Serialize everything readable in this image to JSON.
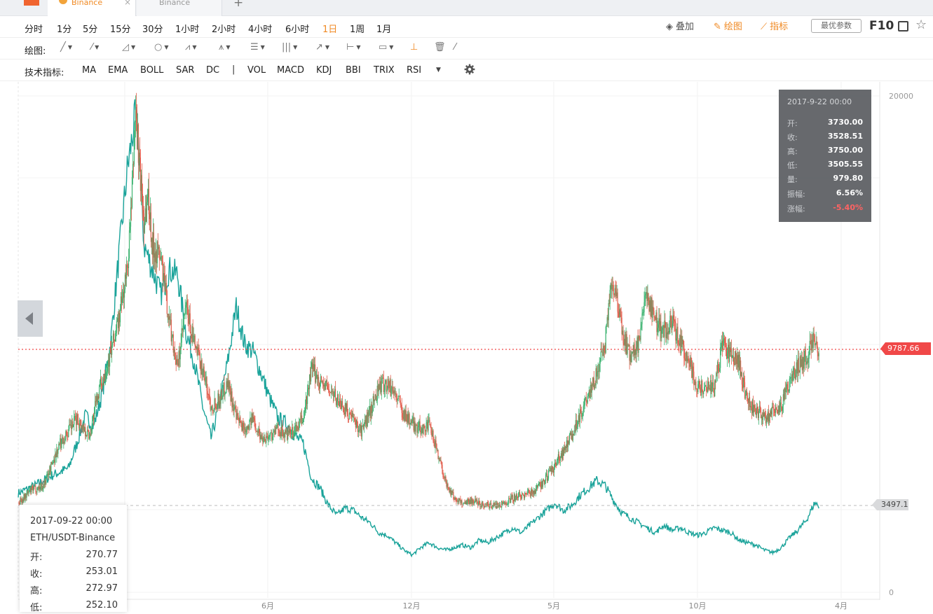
{
  "tabs": [
    {
      "label": "Binance",
      "active": true
    },
    {
      "label": "Binance",
      "active": false
    }
  ],
  "periods": [
    "分时",
    "1分",
    "5分",
    "15分",
    "30分",
    "1小时",
    "2小时",
    "4小时",
    "6小时",
    "1日",
    "1周",
    "1月"
  ],
  "active_period": "1日",
  "right_tools": {
    "overlay": "叠加",
    "draw": "绘图",
    "indicator": "指标",
    "best_params": "最优参数",
    "f10": "F10"
  },
  "draw_toolbar": {
    "label": "绘图:"
  },
  "indicator_toolbar": {
    "label": "技术指标:",
    "main": [
      "MA",
      "EMA",
      "BOLL",
      "SAR",
      "DC"
    ],
    "sub": [
      "VOL",
      "MACD",
      "KDJ",
      "BBI",
      "TRIX",
      "RSI"
    ]
  },
  "tooltip_primary": {
    "date": "2017-9-22 00:00",
    "rows": [
      {
        "k": "开:",
        "v": "3730.00"
      },
      {
        "k": "收:",
        "v": "3528.51"
      },
      {
        "k": "高:",
        "v": "3750.00"
      },
      {
        "k": "低:",
        "v": "3505.55"
      },
      {
        "k": "量:",
        "v": "979.80"
      },
      {
        "k": "振幅:",
        "v": "6.56%"
      },
      {
        "k": "涨幅:",
        "v": "-5.40%"
      }
    ]
  },
  "tooltip_compare": {
    "date": "2017-09-22 00:00",
    "symbol": "ETH/USDT-Binance",
    "rows": [
      {
        "k": "开:",
        "v": "270.77"
      },
      {
        "k": "收:",
        "v": "253.01"
      },
      {
        "k": "高:",
        "v": "272.97"
      },
      {
        "k": "低:",
        "v": "252.10"
      }
    ]
  },
  "colors": {
    "up": "#3cb371",
    "down": "#e25b4a",
    "compare": "#1aa39a",
    "accent": "#f08a24",
    "last_price": "#f04848"
  },
  "chart_data": {
    "type": "line",
    "x_tick_labels": [
      "6月",
      "12月",
      "5月",
      "10月",
      "4月"
    ],
    "y_ticks": [
      0,
      20000
    ],
    "ylim": [
      0,
      20000
    ],
    "last_price_label": "9787.66",
    "last_price": 9787.66,
    "compare_last_label": "3497.1",
    "compare_last": 3497.1,
    "series": [
      {
        "kind": "candles",
        "points": [
          [
            0,
            3600
          ],
          [
            3,
            4100
          ],
          [
            6,
            4300
          ],
          [
            10,
            6000
          ],
          [
            14,
            7000
          ],
          [
            17,
            6300
          ],
          [
            19,
            8000
          ],
          [
            22,
            9600
          ],
          [
            24,
            11000
          ],
          [
            26,
            13000
          ],
          [
            27,
            15500
          ],
          [
            28,
            19500
          ],
          [
            29,
            17000
          ],
          [
            30,
            15000
          ],
          [
            31,
            16000
          ],
          [
            32,
            14000
          ],
          [
            34,
            13500
          ],
          [
            36,
            11000
          ],
          [
            38,
            9000
          ],
          [
            40,
            11500
          ],
          [
            42,
            10000
          ],
          [
            44,
            9000
          ],
          [
            46,
            7500
          ],
          [
            48,
            7800
          ],
          [
            50,
            8500
          ],
          [
            52,
            7000
          ],
          [
            54,
            6600
          ],
          [
            56,
            7000
          ],
          [
            58,
            6200
          ],
          [
            60,
            6300
          ],
          [
            62,
            6600
          ],
          [
            64,
            6300
          ],
          [
            66,
            6500
          ],
          [
            68,
            7000
          ],
          [
            70,
            9000
          ],
          [
            72,
            8500
          ],
          [
            74,
            8200
          ],
          [
            76,
            7800
          ],
          [
            78,
            7400
          ],
          [
            80,
            6900
          ],
          [
            82,
            6500
          ],
          [
            84,
            7300
          ],
          [
            86,
            8300
          ],
          [
            88,
            8400
          ],
          [
            90,
            8000
          ],
          [
            92,
            7200
          ],
          [
            94,
            6800
          ],
          [
            96,
            6600
          ],
          [
            98,
            6700
          ],
          [
            100,
            5700
          ],
          [
            102,
            4400
          ],
          [
            104,
            3800
          ],
          [
            106,
            3600
          ],
          [
            108,
            3700
          ],
          [
            110,
            3600
          ],
          [
            112,
            3500
          ],
          [
            114,
            3500
          ],
          [
            116,
            3600
          ],
          [
            118,
            3800
          ],
          [
            120,
            3900
          ],
          [
            122,
            4000
          ],
          [
            124,
            4200
          ],
          [
            126,
            4600
          ],
          [
            128,
            5100
          ],
          [
            130,
            5700
          ],
          [
            132,
            6300
          ],
          [
            134,
            7200
          ],
          [
            136,
            7800
          ],
          [
            138,
            8800
          ],
          [
            140,
            10000
          ],
          [
            141,
            12000
          ],
          [
            142,
            12500
          ],
          [
            144,
            10500
          ],
          [
            146,
            9500
          ],
          [
            148,
            10000
          ],
          [
            150,
            12000
          ],
          [
            152,
            11000
          ],
          [
            154,
            10500
          ],
          [
            156,
            10800
          ],
          [
            158,
            10000
          ],
          [
            160,
            9400
          ],
          [
            162,
            8200
          ],
          [
            164,
            8300
          ],
          [
            166,
            8200
          ],
          [
            168,
            10000
          ],
          [
            170,
            9500
          ],
          [
            172,
            9200
          ],
          [
            174,
            7600
          ],
          [
            176,
            7400
          ],
          [
            178,
            7000
          ],
          [
            180,
            7300
          ],
          [
            182,
            7500
          ],
          [
            184,
            8500
          ],
          [
            186,
            9100
          ],
          [
            188,
            9500
          ],
          [
            190,
            10200
          ],
          [
            191,
            9700
          ]
        ]
      },
      {
        "name": "ETH/USDT-Binance",
        "kind": "line",
        "points": [
          [
            0,
            4000
          ],
          [
            4,
            4300
          ],
          [
            8,
            4700
          ],
          [
            12,
            5000
          ],
          [
            14,
            6000
          ],
          [
            16,
            7100
          ],
          [
            18,
            6700
          ],
          [
            20,
            8000
          ],
          [
            22,
            10000
          ],
          [
            24,
            13500
          ],
          [
            26,
            17000
          ],
          [
            28,
            19200
          ],
          [
            29,
            17500
          ],
          [
            30,
            14000
          ],
          [
            32,
            13000
          ],
          [
            34,
            12000
          ],
          [
            36,
            13000
          ],
          [
            38,
            12800
          ],
          [
            40,
            10500
          ],
          [
            42,
            9300
          ],
          [
            44,
            7500
          ],
          [
            46,
            6200
          ],
          [
            48,
            7600
          ],
          [
            50,
            9300
          ],
          [
            52,
            11500
          ],
          [
            54,
            10000
          ],
          [
            56,
            9700
          ],
          [
            58,
            8800
          ],
          [
            60,
            7800
          ],
          [
            62,
            7000
          ],
          [
            64,
            6800
          ],
          [
            66,
            6300
          ],
          [
            68,
            6000
          ],
          [
            70,
            4600
          ],
          [
            72,
            4200
          ],
          [
            74,
            3500
          ],
          [
            76,
            3100
          ],
          [
            78,
            3400
          ],
          [
            80,
            3300
          ],
          [
            82,
            3000
          ],
          [
            84,
            2800
          ],
          [
            86,
            2400
          ],
          [
            88,
            2300
          ],
          [
            90,
            2000
          ],
          [
            92,
            1700
          ],
          [
            94,
            1500
          ],
          [
            96,
            1800
          ],
          [
            98,
            2000
          ],
          [
            100,
            1800
          ],
          [
            102,
            1700
          ],
          [
            104,
            1800
          ],
          [
            106,
            1900
          ],
          [
            108,
            1800
          ],
          [
            110,
            2100
          ],
          [
            112,
            2000
          ],
          [
            114,
            2200
          ],
          [
            116,
            2400
          ],
          [
            118,
            2600
          ],
          [
            120,
            2400
          ],
          [
            122,
            2700
          ],
          [
            124,
            3000
          ],
          [
            126,
            3300
          ],
          [
            128,
            3600
          ],
          [
            130,
            3300
          ],
          [
            132,
            3500
          ],
          [
            134,
            3900
          ],
          [
            136,
            4200
          ],
          [
            138,
            4500
          ],
          [
            140,
            4300
          ],
          [
            142,
            3700
          ],
          [
            144,
            3200
          ],
          [
            146,
            3000
          ],
          [
            148,
            2800
          ],
          [
            150,
            2600
          ],
          [
            152,
            2400
          ],
          [
            154,
            2700
          ],
          [
            156,
            2500
          ],
          [
            158,
            2600
          ],
          [
            160,
            2400
          ],
          [
            162,
            2300
          ],
          [
            164,
            2400
          ],
          [
            166,
            2600
          ],
          [
            168,
            2500
          ],
          [
            170,
            2400
          ],
          [
            172,
            2100
          ],
          [
            174,
            2000
          ],
          [
            176,
            1900
          ],
          [
            178,
            1700
          ],
          [
            180,
            1600
          ],
          [
            182,
            1800
          ],
          [
            184,
            2200
          ],
          [
            186,
            2500
          ],
          [
            188,
            2900
          ],
          [
            190,
            3600
          ],
          [
            191,
            3500
          ]
        ]
      }
    ]
  }
}
